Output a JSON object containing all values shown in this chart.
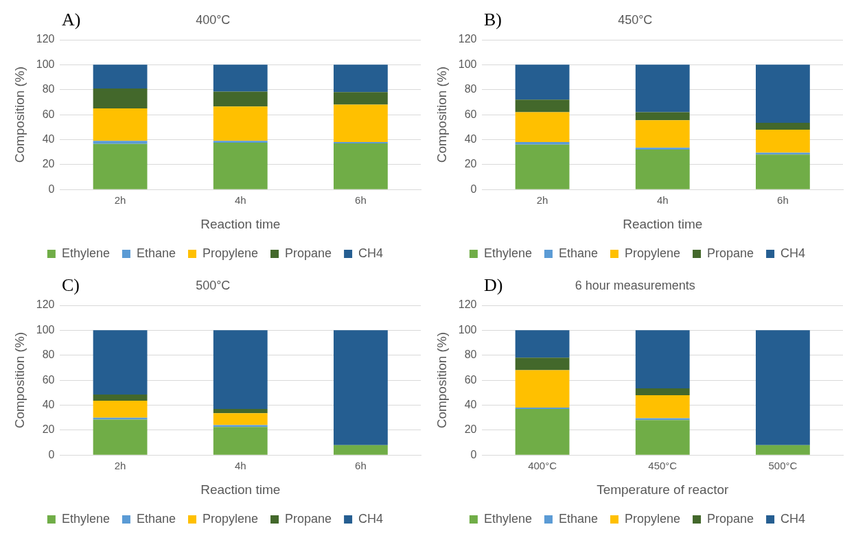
{
  "chart_data": [
    {
      "type": "bar",
      "title": "400°C",
      "annotations": [
        "A)"
      ],
      "xlabel": "Reaction time",
      "ylabel": "Composition (%)",
      "categories": [
        "2h",
        "4h",
        "6h"
      ],
      "stacked": true,
      "ylim": [
        0,
        120
      ],
      "yticks": [
        0,
        20,
        40,
        60,
        80,
        100,
        120
      ],
      "grid": "y",
      "legend": "bottom",
      "series": [
        {
          "name": "Ethylene",
          "color": "#70ad47",
          "values": [
            36.5,
            37.5,
            37
          ]
        },
        {
          "name": "Ethane",
          "color": "#5b9bd5",
          "values": [
            2.5,
            1.5,
            1
          ]
        },
        {
          "name": "Propylene",
          "color": "#ffc000",
          "values": [
            26,
            27.5,
            30
          ]
        },
        {
          "name": "Propane",
          "color": "#43682b",
          "values": [
            16,
            12,
            10
          ]
        },
        {
          "name": "CH4",
          "color": "#255e91",
          "values": [
            19,
            21.5,
            22
          ]
        }
      ]
    },
    {
      "type": "bar",
      "title": "450°C",
      "annotations": [
        "B)"
      ],
      "xlabel": "Reaction time",
      "ylabel": "Composition (%)",
      "categories": [
        "2h",
        "4h",
        "6h"
      ],
      "stacked": true,
      "ylim": [
        0,
        120
      ],
      "yticks": [
        0,
        20,
        40,
        60,
        80,
        100,
        120
      ],
      "grid": "y",
      "legend": "bottom",
      "series": [
        {
          "name": "Ethylene",
          "color": "#70ad47",
          "values": [
            36,
            32,
            28
          ]
        },
        {
          "name": "Ethane",
          "color": "#5b9bd5",
          "values": [
            2,
            1.5,
            1.5
          ]
        },
        {
          "name": "Propylene",
          "color": "#ffc000",
          "values": [
            24,
            22,
            18.5
          ]
        },
        {
          "name": "Propane",
          "color": "#43682b",
          "values": [
            10,
            6.5,
            5.5
          ]
        },
        {
          "name": "CH4",
          "color": "#255e91",
          "values": [
            28,
            38,
            46.5
          ]
        }
      ]
    },
    {
      "type": "bar",
      "title": "500°C",
      "annotations": [
        "C)"
      ],
      "xlabel": "Reaction time",
      "ylabel": "Composition (%)",
      "categories": [
        "2h",
        "4h",
        "6h"
      ],
      "stacked": true,
      "ylim": [
        0,
        120
      ],
      "yticks": [
        0,
        20,
        40,
        60,
        80,
        100,
        120
      ],
      "grid": "y",
      "legend": "bottom",
      "series": [
        {
          "name": "Ethylene",
          "color": "#70ad47",
          "values": [
            28.5,
            22.5,
            8
          ]
        },
        {
          "name": "Ethane",
          "color": "#5b9bd5",
          "values": [
            1.5,
            1.5,
            0
          ]
        },
        {
          "name": "Propylene",
          "color": "#ffc000",
          "values": [
            13.5,
            9.5,
            0
          ]
        },
        {
          "name": "Propane",
          "color": "#43682b",
          "values": [
            5,
            3.5,
            0
          ]
        },
        {
          "name": "CH4",
          "color": "#255e91",
          "values": [
            51.5,
            63,
            92
          ]
        }
      ]
    },
    {
      "type": "bar",
      "title": "6 hour measurements",
      "annotations": [
        "D)"
      ],
      "xlabel": "Temperature of reactor",
      "ylabel": "Composition (%)",
      "categories": [
        "400°C",
        "450°C",
        "500°C"
      ],
      "stacked": true,
      "ylim": [
        0,
        120
      ],
      "yticks": [
        0,
        20,
        40,
        60,
        80,
        100,
        120
      ],
      "grid": "y",
      "legend": "bottom",
      "series": [
        {
          "name": "Ethylene",
          "color": "#70ad47",
          "values": [
            37,
            28,
            8
          ]
        },
        {
          "name": "Ethane",
          "color": "#5b9bd5",
          "values": [
            1,
            1.5,
            0
          ]
        },
        {
          "name": "Propylene",
          "color": "#ffc000",
          "values": [
            30,
            18.5,
            0
          ]
        },
        {
          "name": "Propane",
          "color": "#43682b",
          "values": [
            10,
            5.5,
            0
          ]
        },
        {
          "name": "CH4",
          "color": "#255e91",
          "values": [
            22,
            46.5,
            92
          ]
        }
      ]
    }
  ]
}
